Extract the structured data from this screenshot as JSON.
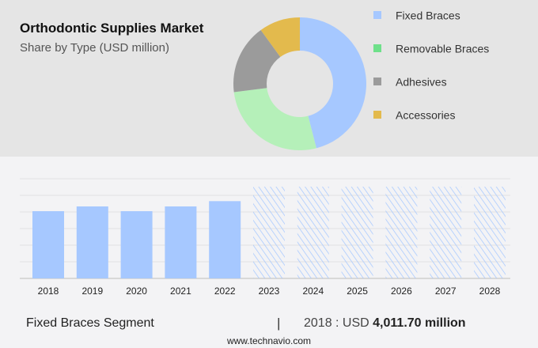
{
  "chart_data": [
    {
      "type": "pie",
      "donut": true,
      "title": "Orthodontic Supplies Market",
      "subtitle": "Share by Type (USD million)",
      "legend_position": "right",
      "slices": [
        {
          "name": "Fixed Braces",
          "share": 46,
          "color": "#a6c8ff"
        },
        {
          "name": "Removable Braces",
          "share": 27,
          "color": "#b5f0b9"
        },
        {
          "name": "Adhesives",
          "share": 17,
          "color": "#9b9b9b"
        },
        {
          "name": "Accessories",
          "share": 10,
          "color": "#e3ba4d"
        }
      ],
      "legend_colors": [
        "#a6c8ff",
        "#6ee08a",
        "#9b9b9b",
        "#e3ba4d"
      ]
    },
    {
      "type": "bar",
      "categories": [
        "2018",
        "2019",
        "2020",
        "2021",
        "2022",
        "2023",
        "2024",
        "2025",
        "2026",
        "2027",
        "2028"
      ],
      "values": [
        4011.7,
        4295,
        4011,
        4295,
        4610,
        null,
        null,
        null,
        null,
        null,
        null
      ],
      "forecast": [
        false,
        false,
        false,
        false,
        false,
        true,
        true,
        true,
        true,
        true,
        true
      ],
      "y_axis_labels_shown": false,
      "grid": true,
      "color": "#a6c8ff"
    }
  ],
  "footer": {
    "segment": "Fixed Braces Segment",
    "separator": "|",
    "value_prefix": "2018 : USD ",
    "value": "4,011.70 million",
    "site": "www.technavio.com"
  }
}
